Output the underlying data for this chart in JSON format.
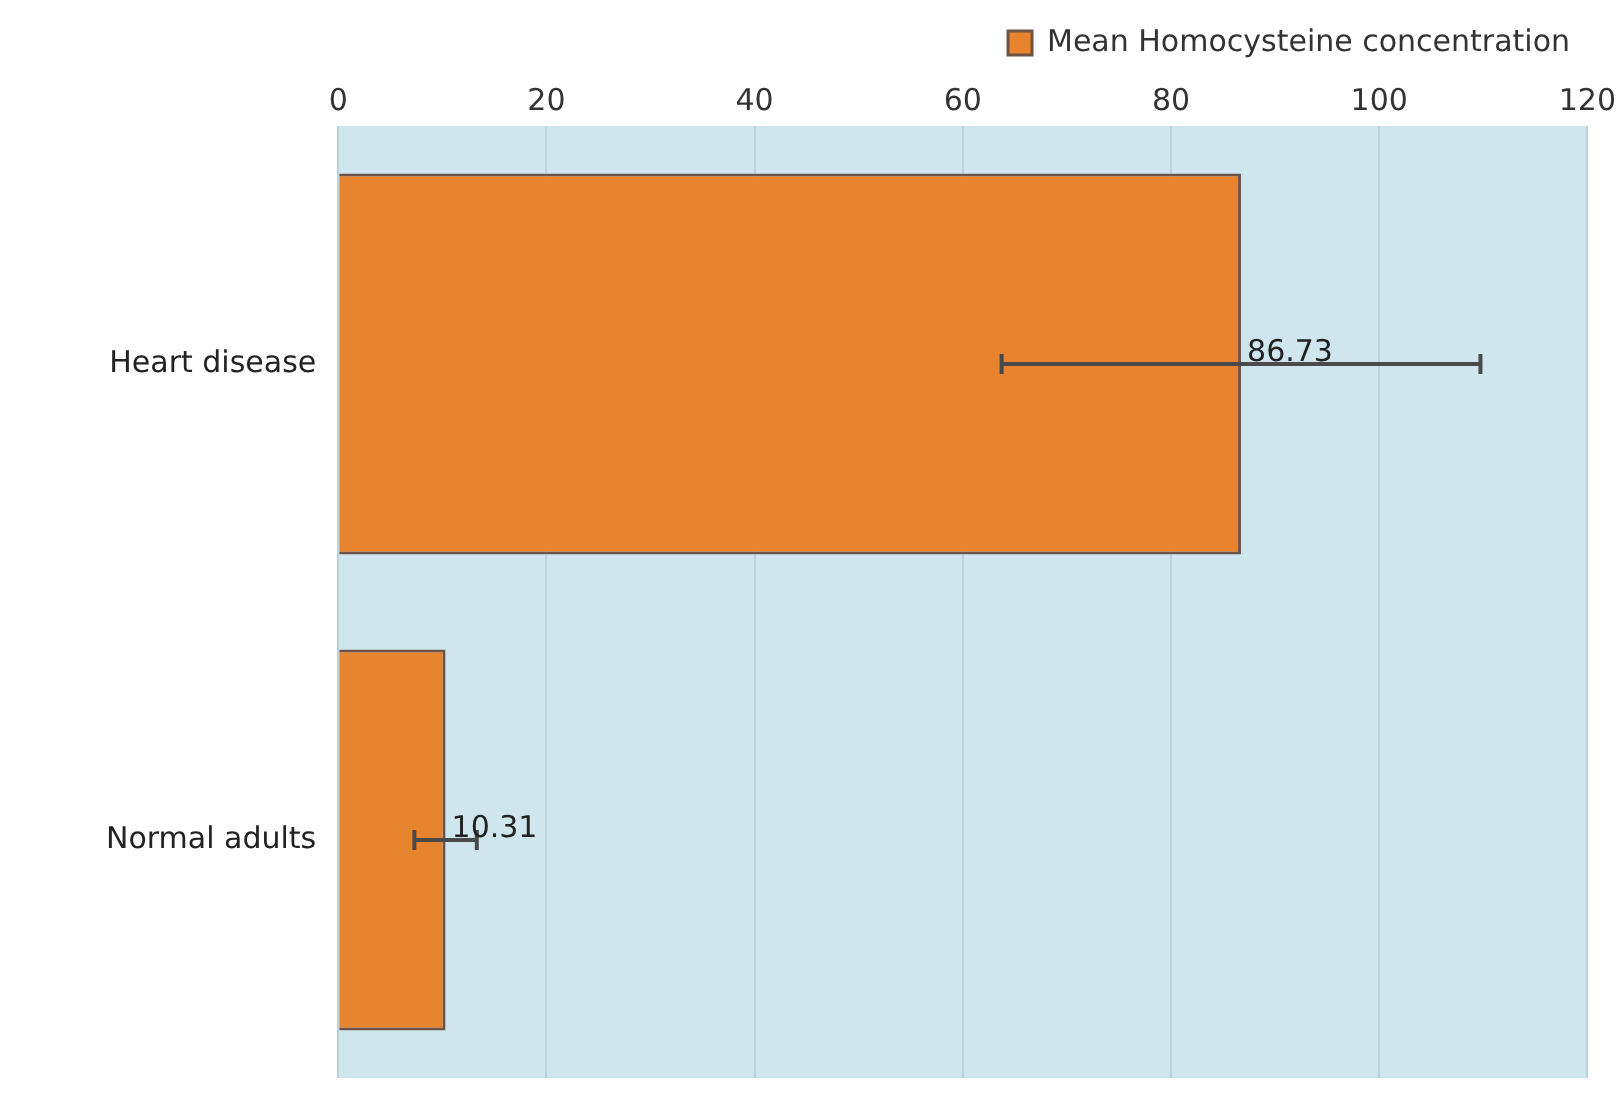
{
  "chart_data": {
    "type": "bar",
    "orientation": "horizontal",
    "categories": [
      "Heart disease",
      "Normal adults"
    ],
    "series": [
      {
        "name": "Mean Homocysteine concentration",
        "color": "#e8832e",
        "values": [
          86.73,
          10.31
        ],
        "errors": [
          23,
          3
        ]
      }
    ],
    "xlim": [
      0,
      120
    ],
    "xticks": [
      0,
      20,
      40,
      60,
      80,
      100,
      120
    ],
    "grid": "x",
    "legend": "top right",
    "data_labels": true
  }
}
